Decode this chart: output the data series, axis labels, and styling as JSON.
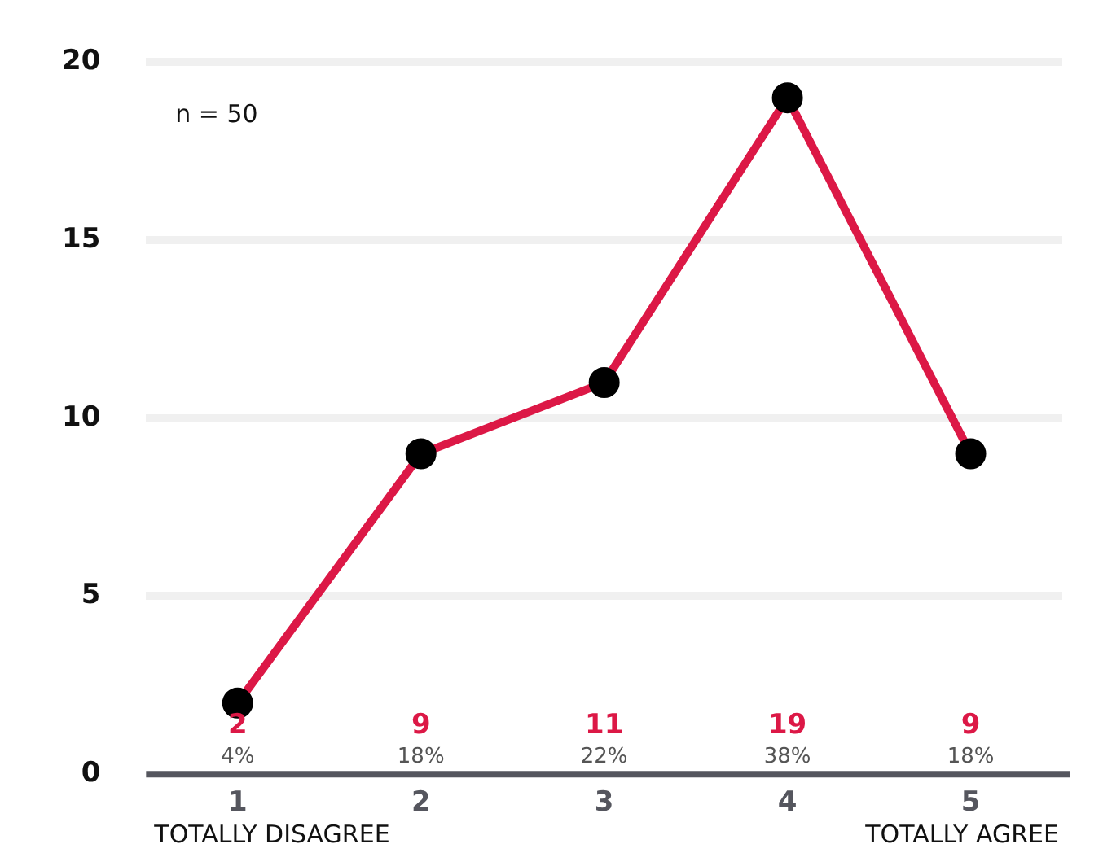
{
  "chart_data": {
    "type": "line",
    "categories": [
      "1",
      "2",
      "3",
      "4",
      "5"
    ],
    "series": [
      {
        "color": "#dc1846",
        "values": [
          2,
          9,
          11,
          19,
          9
        ]
      }
    ],
    "ylim": [
      0,
      20
    ],
    "yticks": [
      0,
      5,
      10,
      15,
      20
    ],
    "grid": "y",
    "legend": false,
    "marker": "circle",
    "line_style": "solid",
    "annotations": [
      "n = 50",
      "2",
      "9",
      "11",
      "19",
      "9",
      "4%",
      "18%",
      "22%",
      "38%",
      "18%",
      "TOTALLY DISAGREE",
      "TOTALLY AGREE"
    ]
  }
}
